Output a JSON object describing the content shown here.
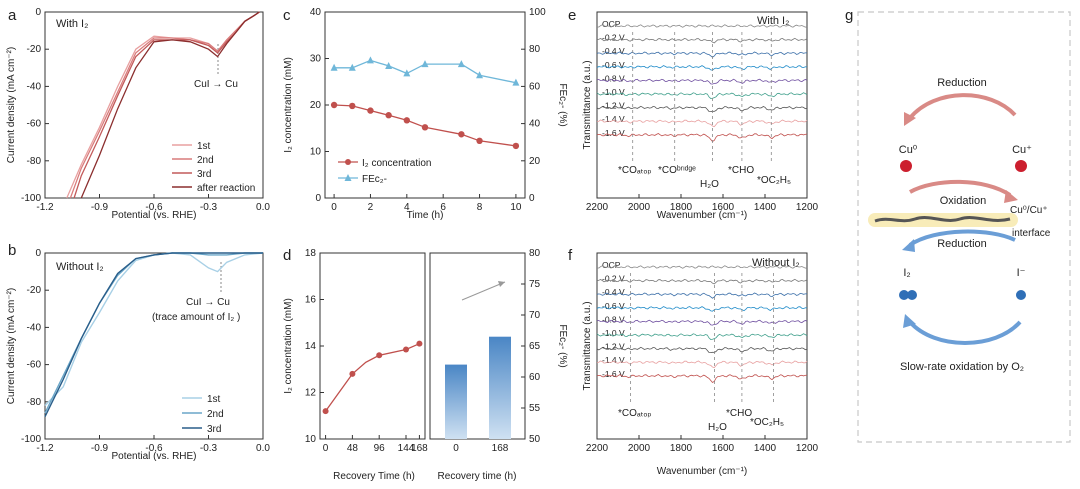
{
  "panels": {
    "a": {
      "letter": "a",
      "tag": "With I₂",
      "xlabel": "Potential (vs. RHE)",
      "ylabel": "Current density (mA cm⁻²)",
      "xticks": [
        "-1.2",
        "-0.9",
        "-0.6",
        "-0.3",
        "0.0"
      ],
      "yticks": [
        "0",
        "-20",
        "-40",
        "-60",
        "-80",
        "-100"
      ],
      "annotation": "CuI → Cu",
      "legend": [
        "1st",
        "2nd",
        "3rd",
        "after reaction"
      ]
    },
    "b": {
      "letter": "b",
      "tag": "Without I₂",
      "xlabel": "Potential (vs. RHE)",
      "ylabel": "Current density (mA cm⁻²)",
      "xticks": [
        "-1.2",
        "-0.9",
        "-0.6",
        "-0.3",
        "0.0"
      ],
      "yticks": [
        "0",
        "-20",
        "-40",
        "-60",
        "-80",
        "-100"
      ],
      "annotation": "CuI → Cu",
      "annotation2": "(trace amount of I₂ )",
      "legend": [
        "1st",
        "2nd",
        "3rd"
      ]
    },
    "c": {
      "letter": "c",
      "xlabel": "Time (h)",
      "ylabel": "I₂ concentration (mM)",
      "ylabel2": "FEᴄ₂- (%)",
      "xticks": [
        "0",
        "2",
        "4",
        "6",
        "8",
        "10"
      ],
      "yticks": [
        "0",
        "10",
        "20",
        "30",
        "40"
      ],
      "yticks2": [
        "0",
        "20",
        "40",
        "60",
        "80",
        "100"
      ],
      "legend": [
        "I₂ concentration",
        "FEᴄ₂-"
      ]
    },
    "d": {
      "letter": "d",
      "xlabel": "Recovery Time (h)",
      "ylabel": "I₂ concentration (mM)",
      "xticks": [
        "0",
        "48",
        "96",
        "144",
        "168"
      ],
      "yticks": [
        "10",
        "12",
        "14",
        "16",
        "18"
      ],
      "xlabel2": "Recovery time (h)",
      "xticks2": [
        "0",
        "168"
      ],
      "ylabel2": "FEᴄ₂- (%)",
      "yticks2": [
        "50",
        "55",
        "60",
        "65",
        "70",
        "75",
        "80"
      ]
    },
    "e": {
      "letter": "e",
      "tag": "With I₂",
      "xlabel": "Wavenumber (cm⁻¹)",
      "ylabel": "Transmittance (a.u.)",
      "xticks": [
        "2200",
        "2000",
        "1800",
        "1600",
        "1400",
        "1200"
      ],
      "potentials": [
        "OCP",
        "-0.2 V",
        "-0.4 V",
        "-0.6 V",
        "-0.8 V",
        "-1.0 V",
        "-1.2 V",
        "-1.4 V",
        "-1.6 V"
      ],
      "bands": [
        "*COₐₜₒₚ",
        "*COᵇʳᶦᵈᵍᵉ",
        "H₂O",
        "*CHO",
        "*OC₂H₅"
      ]
    },
    "f": {
      "letter": "f",
      "tag": "Without I₂",
      "xlabel": "Wavenumber (cm⁻¹)",
      "ylabel": "Transmittance (a.u.)",
      "xticks": [
        "2200",
        "2000",
        "1800",
        "1600",
        "1400",
        "1200"
      ],
      "potentials": [
        "OCP",
        "-0.2 V",
        "-0.4 V",
        "-0.6 V",
        "-0.8 V",
        "-1.0 V",
        "-1.2 V",
        "-1.4 V",
        "-1.6 V"
      ],
      "bands": [
        "*COₐₜₒₚ",
        "H₂O",
        "*CHO",
        "*OC₂H₅"
      ]
    },
    "g": {
      "letter": "g",
      "reduction_top": "Reduction",
      "oxidation": "Oxidation",
      "reduction_bottom": "Reduction",
      "cu0": "Cu⁰",
      "cup": "Cu⁺",
      "interface": "Cu⁰/Cu⁺",
      "interface2": "interface",
      "i2": "I₂",
      "iminus": "I⁻",
      "slow": "Slow-rate oxidation by O₂"
    }
  },
  "chart_data": [
    {
      "panel": "a",
      "type": "line",
      "xlim": [
        -1.2,
        0.0
      ],
      "ylim": [
        -100,
        0
      ],
      "series": [
        {
          "name": "1st",
          "color": "#e8a0a0",
          "x": [
            -1.08,
            -1.0,
            -0.9,
            -0.8,
            -0.7,
            -0.6,
            -0.5,
            -0.4,
            -0.3,
            -0.25,
            -0.2,
            -0.15,
            -0.1,
            -0.05,
            -0.02
          ],
          "y": [
            -100,
            -82,
            -62,
            -40,
            -20,
            -13,
            -14,
            -14,
            -17,
            -21,
            -15,
            -10,
            -5,
            -2,
            0
          ]
        },
        {
          "name": "2nd",
          "color": "#d97c7c",
          "x": [
            -1.06,
            -1.0,
            -0.9,
            -0.8,
            -0.7,
            -0.6,
            -0.5,
            -0.4,
            -0.3,
            -0.25,
            -0.2,
            -0.15,
            -0.1,
            -0.05,
            -0.02
          ],
          "y": [
            -100,
            -84,
            -64,
            -43,
            -22,
            -14,
            -14,
            -15,
            -17,
            -21,
            -15,
            -10,
            -5,
            -2,
            0
          ]
        },
        {
          "name": "3rd",
          "color": "#c25a5a",
          "x": [
            -1.04,
            -1.0,
            -0.9,
            -0.8,
            -0.7,
            -0.6,
            -0.5,
            -0.4,
            -0.3,
            -0.25,
            -0.2,
            -0.15,
            -0.1,
            -0.05,
            -0.02
          ],
          "y": [
            -100,
            -88,
            -67,
            -45,
            -24,
            -15,
            -15,
            -15,
            -18,
            -22,
            -16,
            -11,
            -5,
            -2,
            0
          ]
        },
        {
          "name": "after reaction",
          "color": "#8b2e2e",
          "x": [
            -1.0,
            -0.9,
            -0.8,
            -0.7,
            -0.6,
            -0.5,
            -0.4,
            -0.3,
            -0.25,
            -0.2,
            -0.15,
            -0.1,
            -0.05,
            -0.02
          ],
          "y": [
            -100,
            -77,
            -52,
            -30,
            -16,
            -15,
            -16,
            -20,
            -24,
            -17,
            -11,
            -5,
            -2,
            0
          ]
        }
      ]
    },
    {
      "panel": "b",
      "type": "line",
      "xlim": [
        -1.2,
        0.0
      ],
      "ylim": [
        -100,
        0
      ],
      "series": [
        {
          "name": "1st",
          "color": "#a8d0e6",
          "x": [
            -1.2,
            -1.1,
            -1.0,
            -0.9,
            -0.8,
            -0.7,
            -0.6,
            -0.5,
            -0.4,
            -0.3,
            -0.25,
            -0.2,
            -0.1,
            0.0
          ],
          "y": [
            -82,
            -72,
            -48,
            -32,
            -15,
            -4,
            -1,
            0,
            -1,
            -8,
            -10,
            -5,
            -1,
            0
          ]
        },
        {
          "name": "2nd",
          "color": "#6aa6c8",
          "x": [
            -1.2,
            -1.1,
            -1.0,
            -0.9,
            -0.8,
            -0.7,
            -0.6,
            -0.5,
            -0.4,
            -0.3,
            -0.2,
            -0.1,
            0.0
          ],
          "y": [
            -86,
            -66,
            -46,
            -27,
            -12,
            -3,
            -1,
            0,
            0,
            -1,
            -1,
            0,
            0
          ]
        },
        {
          "name": "3rd",
          "color": "#2a5e8a",
          "x": [
            -1.2,
            -1.1,
            -1.0,
            -0.9,
            -0.8,
            -0.7,
            -0.6,
            -0.5,
            -0.4,
            -0.3,
            -0.2,
            -0.1,
            0.0
          ],
          "y": [
            -88,
            -68,
            -46,
            -27,
            -11,
            -3,
            -1,
            0,
            0,
            0,
            0,
            0,
            0
          ]
        }
      ]
    },
    {
      "panel": "c",
      "type": "line",
      "xlim": [
        -0.5,
        10.5
      ],
      "ylim": [
        0,
        40
      ],
      "y2lim": [
        0,
        100
      ],
      "categories": [
        0,
        1,
        2,
        3,
        4,
        5,
        6,
        7,
        8,
        9,
        10
      ],
      "series": [
        {
          "name": "I2 concentration",
          "axis": "left",
          "color": "#c0504d",
          "x": [
            0,
            1,
            2,
            3,
            4,
            5,
            7,
            8,
            10
          ],
          "y": [
            20,
            19.8,
            18.8,
            17.8,
            16.7,
            15.2,
            13.7,
            12.3,
            11.2
          ]
        },
        {
          "name": "FE C2-",
          "axis": "right",
          "color": "#6fb7d9",
          "x": [
            0,
            1,
            2,
            3,
            4,
            5,
            7,
            8,
            10
          ],
          "y": [
            70,
            70,
            74,
            71,
            67,
            72,
            72,
            66,
            62
          ]
        }
      ]
    },
    {
      "panel": "d-left",
      "type": "line",
      "xlim": [
        -10,
        178
      ],
      "ylim": [
        10,
        18
      ],
      "series": [
        {
          "name": "I2 concentration",
          "color": "#c0504d",
          "x": [
            0,
            24,
            48,
            72,
            96,
            144,
            168
          ],
          "y": [
            11.2,
            12.0,
            12.8,
            13.3,
            13.6,
            13.85,
            14.1
          ]
        }
      ]
    },
    {
      "panel": "d-right",
      "type": "bar",
      "ylim": [
        50,
        80
      ],
      "categories": [
        "0",
        "168"
      ],
      "values": [
        62,
        66.5
      ]
    }
  ]
}
